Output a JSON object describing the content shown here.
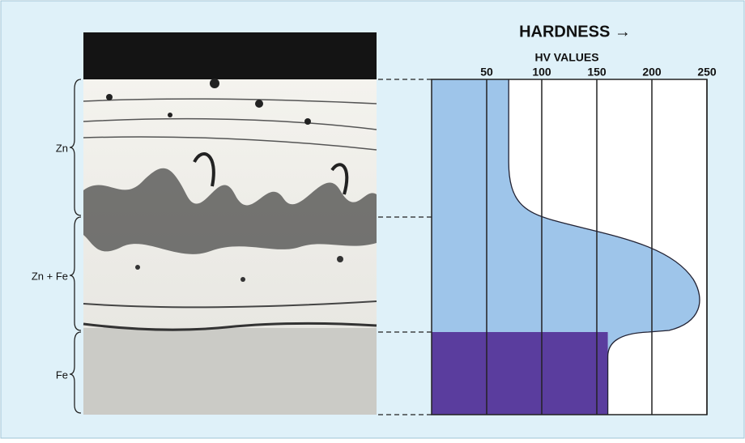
{
  "title": "HARDNESS →",
  "axis_label": "HV VALUES",
  "xlim": [
    0,
    250
  ],
  "xticks": [
    50,
    100,
    150,
    200,
    250
  ],
  "layers": [
    {
      "label": "Zn",
      "hardness": 70
    },
    {
      "label": "Zn + Fe",
      "hardness": 245
    },
    {
      "label": "Fe",
      "hardness": 160
    }
  ]
}
